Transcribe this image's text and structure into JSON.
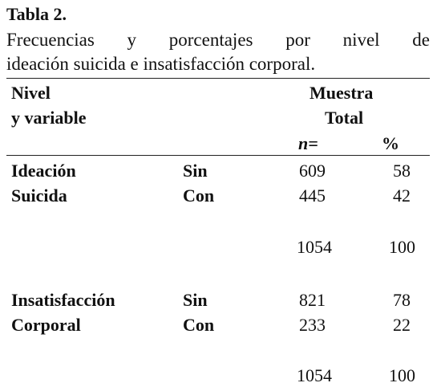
{
  "table": {
    "label": "Tabla 2.",
    "caption_line1_words": [
      "Frecuencias",
      "y",
      "porcentajes",
      "por",
      "nivel",
      "de"
    ],
    "caption_line2": "ideación suicida e insatisfacción corporal.",
    "header": {
      "col1_line1": "Nivel",
      "col1_line2": "y variable",
      "group_line1": "Muestra",
      "group_line2": "Total",
      "n_label": "n=",
      "pct_label": "%"
    },
    "blocks": [
      {
        "name_line1": "Ideación",
        "name_line2": "Suicida",
        "rows": [
          {
            "level": "Sin",
            "n": "609",
            "pct": "58"
          },
          {
            "level": "Con",
            "n": "445",
            "pct": "42"
          }
        ],
        "total": {
          "n": "1054",
          "pct": "100"
        }
      },
      {
        "name_line1": "Insatisfacción",
        "name_line2": "Corporal",
        "rows": [
          {
            "level": "Sin",
            "n": "821",
            "pct": "78"
          },
          {
            "level": "Con",
            "n": "233",
            "pct": "22"
          }
        ],
        "total": {
          "n": "1054",
          "pct": "100"
        }
      }
    ]
  }
}
